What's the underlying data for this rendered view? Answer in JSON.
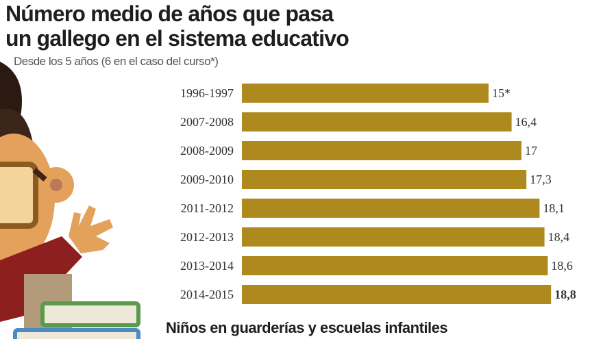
{
  "chart_data": {
    "type": "bar",
    "orientation": "horizontal",
    "title": "Número medio de años que pasa un gallego en el sistema educativo",
    "title_lines": [
      "Número medio de años que pasa",
      "un gallego en el sistema educativo"
    ],
    "subtitle": "Desde los 5 años (6 en el caso del curso*)",
    "categories": [
      "1996-1997",
      "2007-2008",
      "2008-2009",
      "2009-2010",
      "2011-2012",
      "2012-2013",
      "2013-2014",
      "2014-2015"
    ],
    "values": [
      15,
      16.4,
      17,
      17.3,
      18.1,
      18.4,
      18.6,
      18.8
    ],
    "value_labels": [
      "15*",
      "16,4",
      "17",
      "17,3",
      "18,1",
      "18,4",
      "18,6",
      "18,8"
    ],
    "xlabel": "",
    "ylabel": "",
    "xlim": [
      0,
      19
    ],
    "grid": false,
    "bar_color": "#ae8a1e"
  },
  "footer": "Niños en guarderías y escuelas infantiles"
}
